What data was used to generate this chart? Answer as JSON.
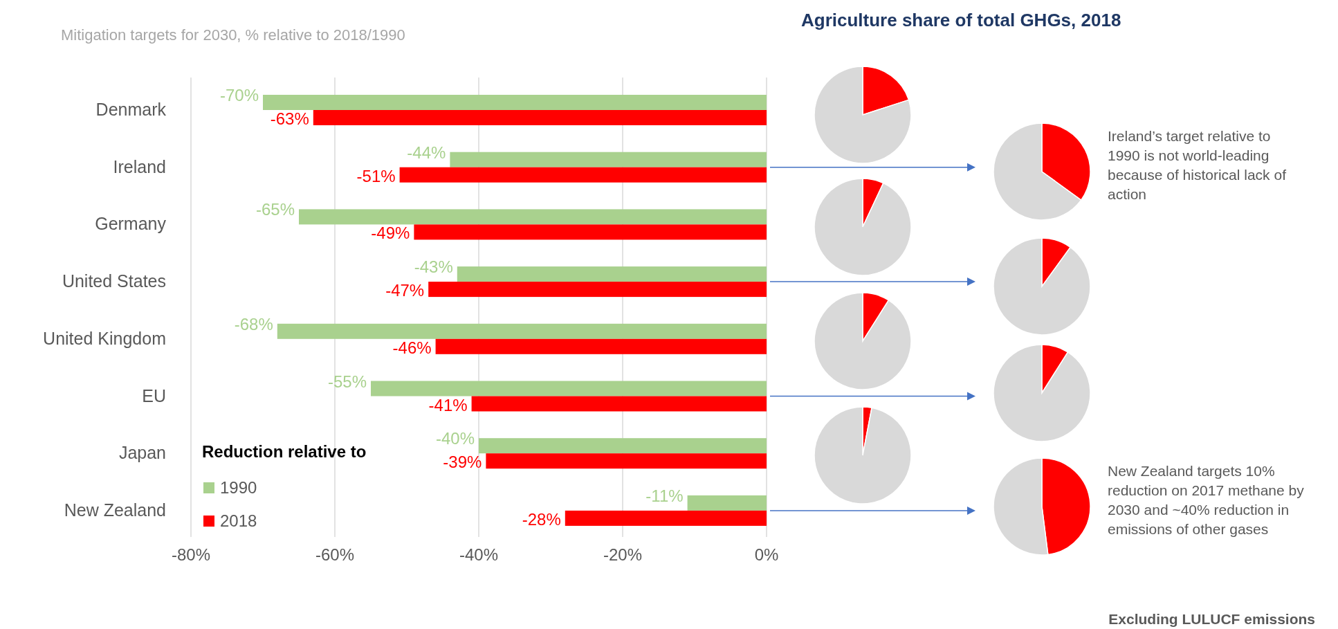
{
  "chart_data": [
    {
      "type": "bar",
      "orientation": "horizontal",
      "subtitle": "Mitigation targets for 2030, % relative to 2018/1990",
      "categories": [
        "Denmark",
        "Ireland",
        "Germany",
        "United States",
        "United Kingdom",
        "EU",
        "Japan",
        "New Zealand"
      ],
      "series": [
        {
          "name": "1990",
          "color": "#a9d18e",
          "values": [
            -70,
            -44,
            -65,
            -43,
            -68,
            -55,
            -40,
            -11
          ],
          "value_labels": [
            "-70%",
            "-44%",
            "-65%",
            "-43%",
            "-68%",
            "-55%",
            "-40%",
            "-11%"
          ]
        },
        {
          "name": "2018",
          "color": "#ff0000",
          "values": [
            -63,
            -51,
            -49,
            -47,
            -46,
            -41,
            -39,
            -28
          ],
          "value_labels": [
            "-63%",
            "-51%",
            "-49%",
            "-47%",
            "-46%",
            "-41%",
            "-39%",
            "-28%"
          ]
        }
      ],
      "xlim": [
        -80,
        0
      ],
      "xticks": [
        {
          "value": -80,
          "label": "-80%"
        },
        {
          "value": -60,
          "label": "-60%"
        },
        {
          "value": -40,
          "label": "-40%"
        },
        {
          "value": -20,
          "label": "-20%"
        },
        {
          "value": 0,
          "label": "0%"
        }
      ],
      "grid": "x",
      "legend": "bottom left",
      "legend_title": "Reduction relative to"
    },
    {
      "type": "pie",
      "title": "Agriculture share of total GHGs, 2018",
      "categories": [
        null,
        null
      ],
      "values": [
        20,
        80
      ],
      "colors": [
        "#ff0000",
        "#d9d9d9"
      ]
    },
    {
      "type": "pie",
      "categories": [
        null,
        null
      ],
      "values": [
        35,
        65
      ],
      "colors": [
        "#ff0000",
        "#d9d9d9"
      ],
      "annotations": [
        "Ireland’s target relative to 1990 is not world-leading because of historical lack of action"
      ]
    },
    {
      "type": "pie",
      "categories": [
        null,
        null
      ],
      "values": [
        7,
        93
      ],
      "colors": [
        "#ff0000",
        "#d9d9d9"
      ]
    },
    {
      "type": "pie",
      "categories": [
        null,
        null
      ],
      "values": [
        10,
        90
      ],
      "colors": [
        "#ff0000",
        "#d9d9d9"
      ]
    },
    {
      "type": "pie",
      "categories": [
        null,
        null
      ],
      "values": [
        9,
        91
      ],
      "colors": [
        "#ff0000",
        "#d9d9d9"
      ]
    },
    {
      "type": "pie",
      "categories": [
        null,
        null
      ],
      "values": [
        9,
        91
      ],
      "colors": [
        "#ff0000",
        "#d9d9d9"
      ]
    },
    {
      "type": "pie",
      "categories": [
        null,
        null
      ],
      "values": [
        3,
        97
      ],
      "colors": [
        "#ff0000",
        "#d9d9d9"
      ]
    },
    {
      "type": "pie",
      "categories": [
        null,
        null
      ],
      "values": [
        48,
        52
      ],
      "colors": [
        "#ff0000",
        "#d9d9d9"
      ],
      "annotations": [
        "New Zealand targets 10% reduction on 2017 methane by 2030 and ~40% reduction in emissions of other gases",
        "Excluding LULUCF emissions"
      ]
    }
  ]
}
